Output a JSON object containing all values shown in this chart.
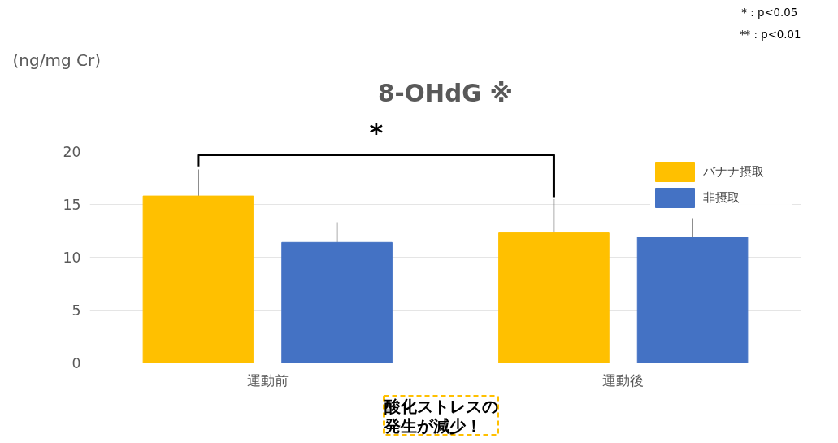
{
  "chart_data": {
    "type": "bar",
    "title": "8-OHdG ※",
    "ylabel": "(ng/mg Cr)",
    "categories": [
      "運動前",
      "運動後"
    ],
    "series": [
      {
        "name": "バナナ摂取",
        "color": "#ffc000",
        "values": [
          15.8,
          12.3
        ],
        "errors": [
          [
            15.8,
            18.3
          ],
          [
            12.3,
            15.5
          ]
        ]
      },
      {
        "name": "非摂取",
        "color": "#4472c4",
        "values": [
          11.4,
          11.9
        ],
        "errors": [
          [
            11.4,
            13.3
          ],
          [
            11.9,
            13.7
          ]
        ]
      }
    ],
    "ylim": [
      0,
      20
    ],
    "yticks": [
      0,
      5,
      10,
      15,
      20
    ],
    "grid": "y",
    "legend": "top right",
    "annotations": [
      "*",
      "*  : p<0.05",
      "** : p<0.01",
      "酸化ストレスの発生が減少！"
    ]
  }
}
